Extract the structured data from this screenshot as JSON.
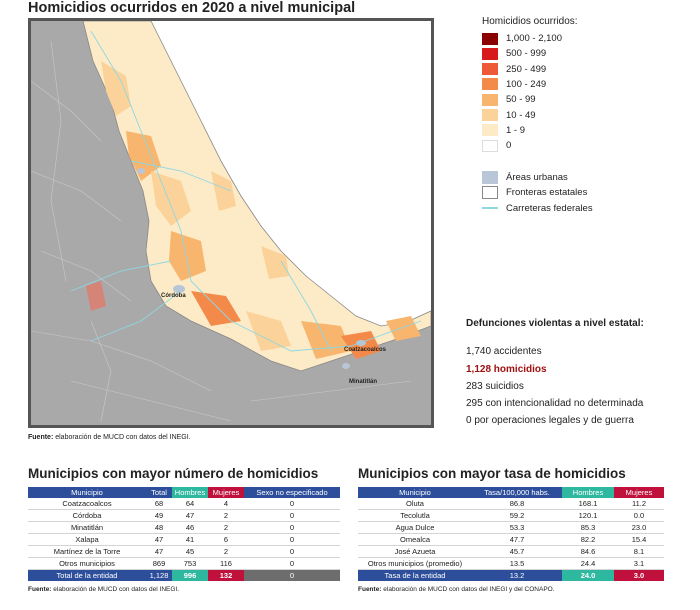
{
  "map": {
    "title": "Homicidios ocurridos en 2020 a nivel municipal",
    "labels": {
      "cordoba": "Córdoba",
      "coatzacoalcos": "Coatzacoalcos",
      "minatitlan": "Minatitlán"
    },
    "source_label": "Fuente:",
    "source_text": " elaboración de MUCD con datos del INEGI."
  },
  "legend": {
    "title": "Homicidios ocurridos:",
    "items": [
      {
        "label": "1,000 - 2,100",
        "color": "#8b0000"
      },
      {
        "label": "500 - 999",
        "color": "#d7191c"
      },
      {
        "label": "250 - 499",
        "color": "#ee5a38"
      },
      {
        "label": "100 - 249",
        "color": "#f48a4a"
      },
      {
        "label": "50 - 99",
        "color": "#f7b56d"
      },
      {
        "label": "10 - 49",
        "color": "#fbd39a"
      },
      {
        "label": "1 - 9",
        "color": "#fdebc8"
      },
      {
        "label": "0",
        "color": "#ffffff"
      }
    ],
    "refs": [
      {
        "label": "Áreas urbanas",
        "color": "#b8c6d8"
      },
      {
        "label": "Fronteras estatales",
        "color": "#ffffff"
      },
      {
        "label": "Carreteras federales",
        "color": "#8ed7e3"
      }
    ]
  },
  "violent_deaths": {
    "title": "Defunciones violentas a nivel estatal:",
    "items": [
      "1,740 accidentes",
      "1,128 homicidios",
      "283 suicidios",
      "295 con intencionalidad no determinada",
      "0 por operaciones legales y de guerra"
    ]
  },
  "table_count": {
    "title": "Municipios con mayor número de homicidios",
    "headers": [
      "Municipio",
      "Total",
      "Hombres",
      "Mujeres",
      "Sexo no especificado"
    ],
    "rows": [
      [
        "Coatzacoalcos",
        "68",
        "64",
        "4",
        "0"
      ],
      [
        "Córdoba",
        "49",
        "47",
        "2",
        "0"
      ],
      [
        "Minatitlán",
        "48",
        "46",
        "2",
        "0"
      ],
      [
        "Xalapa",
        "47",
        "41",
        "6",
        "0"
      ],
      [
        "Martínez de la Torre",
        "47",
        "45",
        "2",
        "0"
      ],
      [
        "Otros municipios",
        "869",
        "753",
        "116",
        "0"
      ]
    ],
    "total": [
      "Total de la entidad",
      "1,128",
      "996",
      "132",
      "0"
    ],
    "source_label": "Fuente:",
    "source_text": " elaboración de MUCD con datos del INEGI."
  },
  "table_rate": {
    "title": "Municipios con mayor tasa de homicidios",
    "headers": [
      "Municipio",
      "Tasa/100,000 habs.",
      "Hombres",
      "Mujeres"
    ],
    "rows": [
      [
        "Oluta",
        "86.8",
        "168.1",
        "11.2"
      ],
      [
        "Tecolutla",
        "59.2",
        "120.1",
        "0.0"
      ],
      [
        "Agua Dulce",
        "53.3",
        "85.3",
        "23.0"
      ],
      [
        "Omealca",
        "47.7",
        "82.2",
        "15.4"
      ],
      [
        "José Azueta",
        "45.7",
        "84.6",
        "8.1"
      ],
      [
        "Otros municipios (promedio)",
        "13.5",
        "24.4",
        "3.1"
      ]
    ],
    "total": [
      "Tasa de la entidad",
      "13.2",
      "24.0",
      "3.0"
    ],
    "source_label": "Fuente:",
    "source_text": " elaboración de MUCD con datos del INEGI y del CONAPO."
  }
}
